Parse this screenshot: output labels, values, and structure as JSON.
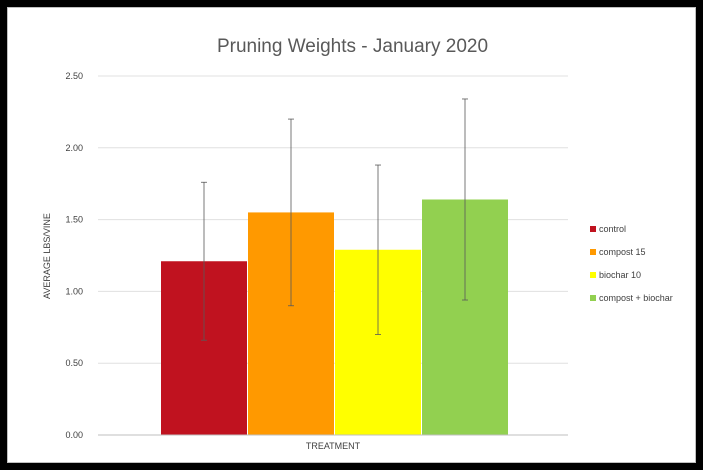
{
  "chart_data": {
    "type": "bar",
    "title": "Pruning Weights - January 2020",
    "xlabel": "TREATMENT",
    "ylabel": "AVERAGE LBS/VINE",
    "categories": [
      "TREATMENT"
    ],
    "ylim": [
      0,
      2.5
    ],
    "yticks": [
      "0.00",
      "0.50",
      "1.00",
      "1.50",
      "2.00",
      "2.50"
    ],
    "grid": true,
    "legend_position": "right",
    "series": [
      {
        "name": "control",
        "values": [
          1.21
        ],
        "error": [
          0.55
        ],
        "color": "#c0121f"
      },
      {
        "name": "compost 15",
        "values": [
          1.55
        ],
        "error": [
          0.65
        ],
        "color": "#ff9900"
      },
      {
        "name": "biochar 10",
        "values": [
          1.29
        ],
        "error": [
          0.59
        ],
        "color": "#ffff00"
      },
      {
        "name": "compost + biochar",
        "values": [
          1.64
        ],
        "error": [
          0.7
        ],
        "color": "#92d050"
      }
    ]
  }
}
